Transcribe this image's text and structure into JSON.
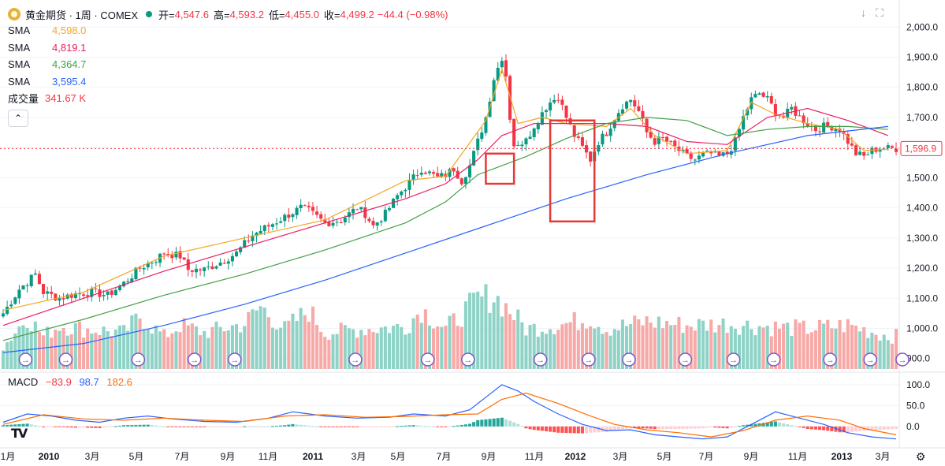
{
  "header": {
    "title": "黄金期货 · 1周 · COMEX",
    "open_label": "开=",
    "open_value": "4,547.6",
    "high_label": "高=",
    "high_value": "4,593.2",
    "low_label": "低=",
    "low_value": "4,455.0",
    "close_label": "收=",
    "close_value": "4,499.2",
    "change_value": "−44.4 (−0.98%)",
    "logo_icon": "gold-coin-icon"
  },
  "indicators": {
    "sma": [
      {
        "label": "SMA",
        "value": "4,598.0",
        "color": "#f5a623"
      },
      {
        "label": "SMA",
        "value": "4,819.1",
        "color": "#e91e63"
      },
      {
        "label": "SMA",
        "value": "4,364.7",
        "color": "#43a047"
      },
      {
        "label": "SMA",
        "value": "3,595.4",
        "color": "#2962ff"
      }
    ],
    "volume": {
      "label": "成交量",
      "value": "341.67 K",
      "color": "#f23645"
    },
    "collapse_icon": "chevron-up-icon",
    "macd": {
      "label": "MACD",
      "hist": "−83.9",
      "macd": "98.7",
      "signal": "182.6",
      "hist_color": "#f23645",
      "macd_color": "#2962ff",
      "signal_color": "#ff6d00"
    }
  },
  "toolbar": {
    "download_icon": "download-icon",
    "fullscreen_icon": "fullscreen-icon",
    "settings_icon": "gear-icon"
  },
  "colors": {
    "up": "#089981",
    "down": "#f23645",
    "box": "#e53935"
  },
  "chart_data": {
    "type": "candlestick",
    "xlabels": [
      "1月",
      "2010",
      "3月",
      "5月",
      "7月",
      "9月",
      "11月",
      "2011",
      "3月",
      "5月",
      "7月",
      "9月",
      "11月",
      "2012",
      "3月",
      "5月",
      "7月",
      "9月",
      "11月",
      "2013",
      "3月"
    ],
    "ylim": [
      860,
      2040
    ],
    "yticks": [
      "2,000.0",
      "1,900.0",
      "1,800.0",
      "1,700.0",
      "1,600.0",
      "1,500.0",
      "1,400.0",
      "1,300.0",
      "1,200.0",
      "1,100.0",
      "1,000.0",
      "900.0"
    ],
    "last_price": "1,596.9",
    "close_path": [
      [
        0,
        1050
      ],
      [
        4,
        1130
      ],
      [
        8,
        1180
      ],
      [
        10,
        1120
      ],
      [
        14,
        1100
      ],
      [
        18,
        1115
      ],
      [
        22,
        1120
      ],
      [
        26,
        1110
      ],
      [
        30,
        1150
      ],
      [
        34,
        1200
      ],
      [
        38,
        1230
      ],
      [
        40,
        1250
      ],
      [
        44,
        1240
      ],
      [
        46,
        1195
      ],
      [
        50,
        1195
      ],
      [
        54,
        1220
      ],
      [
        58,
        1250
      ],
      [
        62,
        1310
      ],
      [
        66,
        1340
      ],
      [
        70,
        1370
      ],
      [
        74,
        1400
      ],
      [
        76,
        1390
      ],
      [
        80,
        1350
      ],
      [
        84,
        1360
      ],
      [
        88,
        1400
      ],
      [
        90,
        1380
      ],
      [
        92,
        1340
      ],
      [
        95,
        1380
      ],
      [
        98,
        1440
      ],
      [
        102,
        1500
      ],
      [
        104,
        1530
      ],
      [
        108,
        1500
      ],
      [
        110,
        1510
      ],
      [
        112,
        1530
      ],
      [
        114,
        1490
      ],
      [
        116,
        1540
      ],
      [
        118,
        1620
      ],
      [
        120,
        1700
      ],
      [
        122,
        1830
      ],
      [
        124,
        1900
      ],
      [
        125,
        1840
      ],
      [
        126,
        1700
      ],
      [
        127,
        1610
      ],
      [
        128,
        1600
      ],
      [
        130,
        1640
      ],
      [
        132,
        1660
      ],
      [
        134,
        1720
      ],
      [
        136,
        1750
      ],
      [
        138,
        1770
      ],
      [
        140,
        1700
      ],
      [
        142,
        1640
      ],
      [
        144,
        1600
      ],
      [
        146,
        1560
      ],
      [
        148,
        1620
      ],
      [
        150,
        1650
      ],
      [
        152,
        1700
      ],
      [
        154,
        1740
      ],
      [
        156,
        1760
      ],
      [
        158,
        1720
      ],
      [
        160,
        1650
      ],
      [
        162,
        1620
      ],
      [
        164,
        1630
      ],
      [
        166,
        1610
      ],
      [
        168,
        1590
      ],
      [
        170,
        1570
      ],
      [
        172,
        1560
      ],
      [
        174,
        1575
      ],
      [
        176,
        1580
      ],
      [
        178,
        1570
      ],
      [
        180,
        1580
      ],
      [
        182,
        1620
      ],
      [
        184,
        1700
      ],
      [
        186,
        1760
      ],
      [
        188,
        1780
      ],
      [
        190,
        1760
      ],
      [
        192,
        1720
      ],
      [
        194,
        1700
      ],
      [
        196,
        1730
      ],
      [
        198,
        1700
      ],
      [
        200,
        1680
      ],
      [
        202,
        1660
      ],
      [
        204,
        1670
      ],
      [
        206,
        1670
      ],
      [
        208,
        1660
      ],
      [
        210,
        1620
      ],
      [
        212,
        1580
      ],
      [
        214,
        1570
      ],
      [
        216,
        1590
      ],
      [
        218,
        1600
      ],
      [
        220,
        1597
      ]
    ],
    "sma_paths": [
      {
        "name": "SMA",
        "points": [
          [
            0,
            1060
          ],
          [
            20,
            1120
          ],
          [
            40,
            1240
          ],
          [
            60,
            1300
          ],
          [
            80,
            1360
          ],
          [
            100,
            1490
          ],
          [
            110,
            1505
          ],
          [
            120,
            1690
          ],
          [
            124,
            1860
          ],
          [
            128,
            1680
          ],
          [
            134,
            1700
          ],
          [
            140,
            1680
          ],
          [
            150,
            1670
          ],
          [
            156,
            1730
          ],
          [
            162,
            1640
          ],
          [
            170,
            1580
          ],
          [
            180,
            1590
          ],
          [
            186,
            1750
          ],
          [
            192,
            1710
          ],
          [
            200,
            1680
          ],
          [
            208,
            1660
          ],
          [
            214,
            1590
          ],
          [
            220,
            1595
          ]
        ]
      },
      {
        "name": "SMA",
        "points": [
          [
            0,
            1010
          ],
          [
            20,
            1100
          ],
          [
            40,
            1190
          ],
          [
            60,
            1270
          ],
          [
            80,
            1350
          ],
          [
            100,
            1430
          ],
          [
            110,
            1480
          ],
          [
            118,
            1560
          ],
          [
            124,
            1640
          ],
          [
            132,
            1680
          ],
          [
            140,
            1680
          ],
          [
            150,
            1680
          ],
          [
            160,
            1670
          ],
          [
            170,
            1620
          ],
          [
            180,
            1610
          ],
          [
            190,
            1700
          ],
          [
            200,
            1730
          ],
          [
            210,
            1690
          ],
          [
            220,
            1640
          ]
        ]
      },
      {
        "name": "SMA",
        "points": [
          [
            0,
            960
          ],
          [
            20,
            1030
          ],
          [
            40,
            1110
          ],
          [
            60,
            1180
          ],
          [
            80,
            1260
          ],
          [
            100,
            1350
          ],
          [
            110,
            1420
          ],
          [
            118,
            1510
          ],
          [
            130,
            1570
          ],
          [
            140,
            1630
          ],
          [
            150,
            1680
          ],
          [
            160,
            1700
          ],
          [
            170,
            1690
          ],
          [
            180,
            1640
          ],
          [
            190,
            1660
          ],
          [
            200,
            1670
          ],
          [
            210,
            1670
          ],
          [
            220,
            1660
          ]
        ]
      },
      {
        "name": "SMA",
        "points": [
          [
            0,
            920
          ],
          [
            20,
            950
          ],
          [
            40,
            1010
          ],
          [
            60,
            1080
          ],
          [
            80,
            1160
          ],
          [
            100,
            1250
          ],
          [
            120,
            1340
          ],
          [
            140,
            1430
          ],
          [
            160,
            1510
          ],
          [
            180,
            1580
          ],
          [
            200,
            1640
          ],
          [
            220,
            1670
          ]
        ]
      }
    ],
    "volume_path": [
      [
        0,
        0.3
      ],
      [
        6,
        0.72
      ],
      [
        10,
        0.45
      ],
      [
        14,
        0.6
      ],
      [
        20,
        0.55
      ],
      [
        30,
        0.5
      ],
      [
        34,
        0.72
      ],
      [
        40,
        0.45
      ],
      [
        44,
        0.6
      ],
      [
        50,
        0.5
      ],
      [
        60,
        0.62
      ],
      [
        64,
        0.85
      ],
      [
        70,
        0.55
      ],
      [
        76,
        0.8
      ],
      [
        80,
        0.5
      ],
      [
        90,
        0.55
      ],
      [
        100,
        0.58
      ],
      [
        104,
        0.82
      ],
      [
        110,
        0.55
      ],
      [
        118,
        0.95
      ],
      [
        122,
        1.0
      ],
      [
        126,
        0.8
      ],
      [
        130,
        0.55
      ],
      [
        140,
        0.62
      ],
      [
        146,
        0.7
      ],
      [
        150,
        0.55
      ],
      [
        160,
        0.65
      ],
      [
        170,
        0.6
      ],
      [
        180,
        0.62
      ],
      [
        190,
        0.58
      ],
      [
        200,
        0.55
      ],
      [
        210,
        0.6
      ],
      [
        220,
        0.45
      ]
    ],
    "event_markers": [
      4,
      14,
      32,
      46,
      56,
      86,
      104,
      114,
      132,
      144,
      154,
      168,
      180,
      190,
      204,
      214,
      222
    ],
    "highlight_boxes": [
      [
        120,
        1580,
        127,
        1480
      ],
      [
        136,
        1690,
        147,
        1355
      ]
    ],
    "macd": {
      "ylim": [
        -40,
        115
      ],
      "yticks": [
        "100.0",
        "50.0",
        "0.0"
      ],
      "macd_path": [
        [
          0,
          10
        ],
        [
          6,
          30
        ],
        [
          12,
          25
        ],
        [
          18,
          15
        ],
        [
          24,
          10
        ],
        [
          30,
          20
        ],
        [
          36,
          25
        ],
        [
          42,
          18
        ],
        [
          50,
          12
        ],
        [
          58,
          10
        ],
        [
          66,
          20
        ],
        [
          72,
          35
        ],
        [
          80,
          25
        ],
        [
          88,
          20
        ],
        [
          96,
          22
        ],
        [
          102,
          30
        ],
        [
          110,
          25
        ],
        [
          116,
          40
        ],
        [
          120,
          70
        ],
        [
          124,
          100
        ],
        [
          128,
          85
        ],
        [
          132,
          60
        ],
        [
          138,
          30
        ],
        [
          144,
          5
        ],
        [
          150,
          -10
        ],
        [
          156,
          -8
        ],
        [
          162,
          -20
        ],
        [
          168,
          -25
        ],
        [
          174,
          -30
        ],
        [
          180,
          -25
        ],
        [
          186,
          5
        ],
        [
          192,
          35
        ],
        [
          198,
          20
        ],
        [
          204,
          5
        ],
        [
          210,
          -15
        ],
        [
          216,
          -25
        ],
        [
          222,
          -30
        ]
      ],
      "signal_path": [
        [
          0,
          5
        ],
        [
          10,
          28
        ],
        [
          20,
          18
        ],
        [
          30,
          15
        ],
        [
          40,
          20
        ],
        [
          50,
          15
        ],
        [
          60,
          12
        ],
        [
          70,
          25
        ],
        [
          80,
          28
        ],
        [
          90,
          22
        ],
        [
          100,
          24
        ],
        [
          110,
          28
        ],
        [
          118,
          30
        ],
        [
          124,
          65
        ],
        [
          130,
          80
        ],
        [
          138,
          55
        ],
        [
          146,
          25
        ],
        [
          152,
          5
        ],
        [
          160,
          -8
        ],
        [
          168,
          -15
        ],
        [
          176,
          -25
        ],
        [
          184,
          -10
        ],
        [
          192,
          15
        ],
        [
          200,
          25
        ],
        [
          208,
          15
        ],
        [
          214,
          -5
        ],
        [
          222,
          -20
        ]
      ]
    }
  }
}
